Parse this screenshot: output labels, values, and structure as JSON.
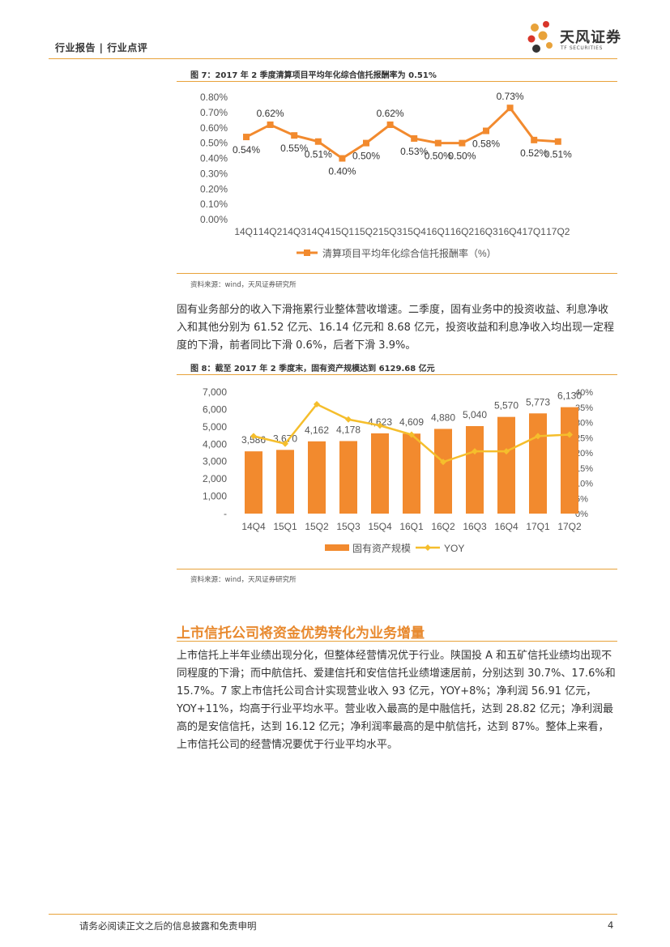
{
  "header": {
    "left": "行业报告 | 行业点评",
    "logo_cn": "天风证券",
    "logo_en": "TF SECURITIES"
  },
  "figure7": {
    "title": "图 7：2017 年 2 季度清算项目平均年化综合信托报酬率为 0.51%",
    "source": "资料来源：wind，天风证券研究所"
  },
  "figure8": {
    "title": "图 8：截至 2017 年 2 季度末，固有资产规模达到 6129.68 亿元",
    "source": "资料来源：wind，天风证券研究所"
  },
  "paragraph1": "固有业务部分的收入下滑拖累行业整体营收增速。二季度，固有业务中的投资收益、利息净收入和其他分别为 61.52 亿元、16.14 亿元和 8.68 亿元，投资收益和利息净收入均出现一定程度的下滑，前者同比下滑 0.6%，后者下滑 3.9%。",
  "section_title": "上市信托公司将资金优势转化为业务增量",
  "paragraph2": "上市信托上半年业绩出现分化，但整体经营情况优于行业。陕国投 A 和五矿信托业绩均出现不同程度的下滑；而中航信托、爱建信托和安信信托业绩增速居前，分别达到 30.7%、17.6%和 15.7%。7 家上市信托公司合计实现营业收入 93 亿元，YOY+8%；净利润 56.91 亿元，YOY+11%，均高于行业平均水平。营业收入最高的是中融信托，达到 28.82 亿元；净利润最高的是安信信托，达到 16.12 亿元；净利润率最高的是中航信托，达到 87%。整体上来看，上市信托公司的经营情况要优于行业平均水平。",
  "footer": {
    "disclaimer": "请务必阅读正文之后的信息披露和免责申明",
    "page": "4"
  },
  "colors": {
    "accent": "#E8A23A",
    "series_orange": "#F28A2E",
    "series_yellow": "#F5BE2C"
  },
  "chart_data": [
    {
      "type": "line",
      "categories": [
        "14Q1",
        "14Q2",
        "14Q3",
        "14Q4",
        "15Q1",
        "15Q2",
        "15Q3",
        "15Q4",
        "16Q1",
        "16Q2",
        "16Q3",
        "16Q4",
        "17Q1",
        "17Q2"
      ],
      "series": [
        {
          "name": "清算项目平均年化综合信托报酬率（%）",
          "values": [
            0.54,
            0.62,
            0.55,
            0.51,
            0.4,
            0.5,
            0.62,
            0.53,
            0.5,
            0.5,
            0.58,
            0.73,
            0.52,
            0.51
          ]
        }
      ],
      "data_labels": [
        "0.54%",
        "0.62%",
        "0.55%",
        "0.51%",
        "0.40%",
        "0.50%",
        "0.62%",
        "0.53%",
        "0.50%",
        "0.50%",
        "0.58%",
        "0.73%",
        "0.52%",
        "0.51%"
      ],
      "y_ticks": [
        "0.00%",
        "0.10%",
        "0.20%",
        "0.30%",
        "0.40%",
        "0.50%",
        "0.60%",
        "0.70%",
        "0.80%"
      ],
      "ylim": [
        0,
        0.8
      ],
      "grid": false,
      "legend": "bottom"
    },
    {
      "type": "bar",
      "categories": [
        "14Q4",
        "15Q1",
        "15Q2",
        "15Q3",
        "15Q4",
        "16Q1",
        "16Q2",
        "16Q3",
        "16Q4",
        "17Q1",
        "17Q2"
      ],
      "series": [
        {
          "name": "固有资产规模",
          "type": "bar",
          "axis": "left",
          "values": [
            3586,
            3670,
            4162,
            4178,
            4623,
            4609,
            4880,
            5040,
            5570,
            5773,
            6130
          ]
        },
        {
          "name": "YOY",
          "type": "line",
          "axis": "right",
          "values": [
            25.5,
            23,
            36,
            31,
            29,
            26,
            17,
            20.5,
            20.5,
            25.5,
            26
          ]
        }
      ],
      "data_labels": [
        "3,586",
        "3,670",
        "4,162",
        "4,178",
        "4,623",
        "4,609",
        "4,880",
        "5,040",
        "5,570",
        "5,773",
        "6,130"
      ],
      "y_left_ticks": [
        "-",
        "1,000",
        "2,000",
        "3,000",
        "4,000",
        "5,000",
        "6,000",
        "7,000"
      ],
      "y_right_ticks": [
        "0%",
        "5%",
        "10%",
        "15%",
        "20%",
        "25%",
        "30%",
        "35%",
        "40%"
      ],
      "ylim_left": [
        0,
        7000
      ],
      "ylim_right": [
        0,
        40
      ],
      "grid": false,
      "legend": "bottom"
    }
  ]
}
